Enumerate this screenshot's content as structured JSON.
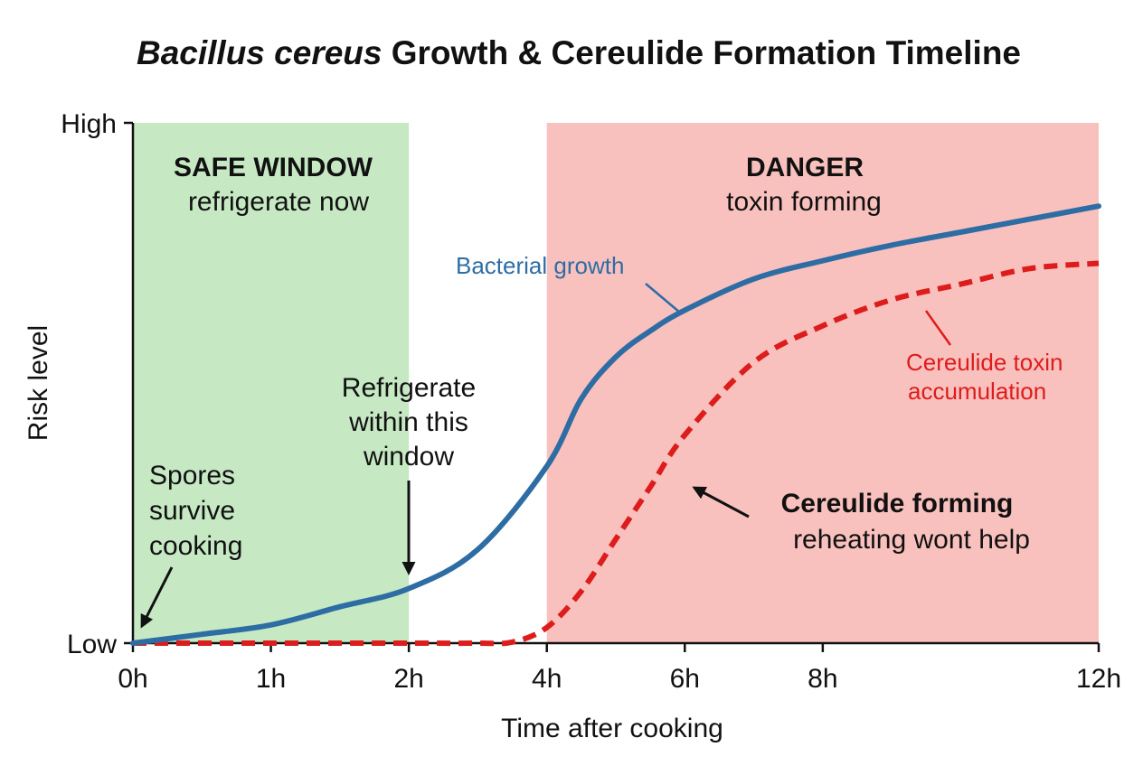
{
  "chart_data": {
    "type": "line",
    "title": {
      "italic_part": "Bacillus cereus",
      "rest": " Growth & Cereulide Formation Timeline"
    },
    "xlabel": "Time after cooking",
    "ylabel": "Risk level",
    "x_ticks": [
      {
        "value": 0,
        "label": "0h"
      },
      {
        "value": 1,
        "label": "1h"
      },
      {
        "value": 2,
        "label": "2h"
      },
      {
        "value": 3,
        "label": "4h"
      },
      {
        "value": 4,
        "label": "6h"
      },
      {
        "value": 5,
        "label": "8h"
      },
      {
        "value": 7,
        "label": "12h"
      }
    ],
    "xlim": [
      0,
      7
    ],
    "ylim": [
      0,
      1
    ],
    "y_ticks": [
      {
        "value": 0,
        "label": "Low"
      },
      {
        "value": 1,
        "label": "High"
      }
    ],
    "zones": [
      {
        "x_start": 0,
        "x_end": 2,
        "color": "#c6e9c4",
        "heading": "SAFE WINDOW",
        "subheading": "refrigerate now"
      },
      {
        "x_start": 3,
        "x_end": 7,
        "color": "#f9c1be",
        "heading": "DANGER",
        "subheading": "toxin forming"
      }
    ],
    "series": [
      {
        "name": "Bacterial growth",
        "color": "#2e6da4",
        "style": "solid",
        "points": [
          [
            0,
            0.0
          ],
          [
            0.5,
            0.017
          ],
          [
            1,
            0.035
          ],
          [
            1.5,
            0.07
          ],
          [
            2,
            0.105
          ],
          [
            2.5,
            0.18
          ],
          [
            3,
            0.34
          ],
          [
            3.25,
            0.47
          ],
          [
            3.5,
            0.55
          ],
          [
            3.75,
            0.6
          ],
          [
            4,
            0.64
          ],
          [
            4.5,
            0.7
          ],
          [
            5,
            0.735
          ],
          [
            5.5,
            0.765
          ],
          [
            6,
            0.79
          ],
          [
            6.5,
            0.815
          ],
          [
            7,
            0.84
          ]
        ]
      },
      {
        "name": "Cereulide toxin accumulation",
        "color": "#dd1c1c",
        "style": "dashed",
        "points": [
          [
            0,
            0.0
          ],
          [
            1,
            0.0
          ],
          [
            2,
            0.0
          ],
          [
            2.5,
            0.0
          ],
          [
            2.75,
            0.002
          ],
          [
            3,
            0.03
          ],
          [
            3.25,
            0.1
          ],
          [
            3.5,
            0.2
          ],
          [
            3.75,
            0.3
          ],
          [
            4,
            0.4
          ],
          [
            4.5,
            0.54
          ],
          [
            5,
            0.61
          ],
          [
            5.5,
            0.66
          ],
          [
            6,
            0.69
          ],
          [
            6.5,
            0.72
          ],
          [
            7,
            0.73
          ]
        ]
      }
    ],
    "annotations": [
      {
        "lines": [
          "Spores",
          "survive",
          "cooking"
        ],
        "points_to": [
          0,
          0.0
        ]
      },
      {
        "lines": [
          "Refrigerate",
          "within this",
          "window"
        ],
        "points_to": [
          2,
          0.105
        ]
      },
      {
        "bold": "Cereulide forming",
        "lines": [
          "reheating wont help"
        ],
        "points_to": [
          4,
          0.32
        ]
      }
    ],
    "grid": false,
    "legend": "none"
  }
}
